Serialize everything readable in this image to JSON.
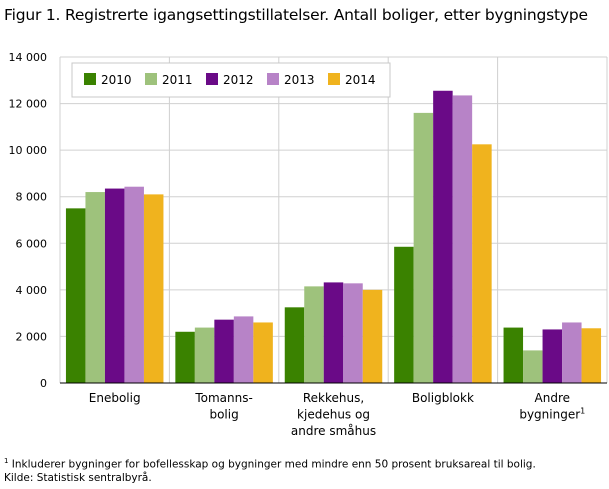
{
  "title": "Figur 1. Registrerte igangsettingstillatelser. Antall boliger, etter bygningstype",
  "chart_data": {
    "type": "bar",
    "categories": [
      [
        "Enebolig"
      ],
      [
        "Tomanns-",
        "bolig"
      ],
      [
        "Rekkehus,",
        "kjedehus og",
        "andre småhus"
      ],
      [
        "Boligblokk"
      ],
      [
        "Andre",
        "bygninger"
      ]
    ],
    "category_footnote_marks": [
      "",
      "",
      "",
      "",
      "1"
    ],
    "series": [
      {
        "name": "2010",
        "color": "#3a8200",
        "values": [
          7500,
          2200,
          3250,
          5850,
          2380
        ]
      },
      {
        "name": "2011",
        "color": "#9ec27c",
        "values": [
          8200,
          2380,
          4150,
          11600,
          1400
        ]
      },
      {
        "name": "2012",
        "color": "#6a0a87",
        "values": [
          8350,
          2720,
          4320,
          12550,
          2300
        ]
      },
      {
        "name": "2013",
        "color": "#b783c7",
        "values": [
          8430,
          2860,
          4280,
          12350,
          2600
        ]
      },
      {
        "name": "2014",
        "color": "#f0b31e",
        "values": [
          8100,
          2600,
          4000,
          10250,
          2350
        ]
      }
    ],
    "yticks": [
      "0",
      "2 000",
      "4 000",
      "6 000",
      "8 000",
      "10 000",
      "12 000",
      "14 000"
    ],
    "ylim": [
      0,
      14000
    ],
    "grid": true,
    "legend_position": "top-left"
  },
  "footnotes": {
    "note_mark": "1",
    "note_text": " Inkluderer bygninger for bofellesskap og bygninger med mindre enn 50 prosent bruksareal til bolig.",
    "source": "Kilde: Statistisk sentralbyrå."
  }
}
